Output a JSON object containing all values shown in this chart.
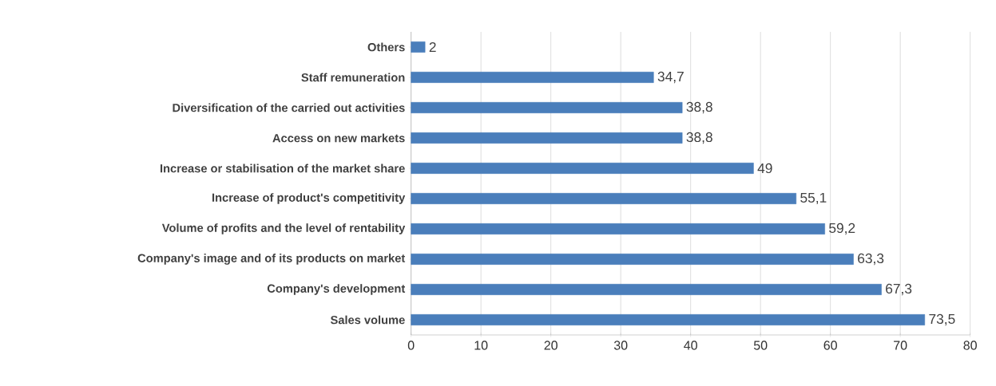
{
  "chart_data": {
    "type": "bar",
    "orientation": "horizontal",
    "categories": [
      "Others",
      "Staff remuneration",
      "Diversification of the carried out activities",
      "Access on new markets",
      "Increase or stabilisation  of the market share",
      "Increase of product's competitivity",
      "Volume of profits and the level of rentability",
      "Company's image and of its products on market",
      "Company's development",
      "Sales volume"
    ],
    "values": [
      2,
      34.7,
      38.8,
      38.8,
      49,
      55.1,
      59.2,
      63.3,
      67.3,
      73.5
    ],
    "value_labels": [
      "2",
      "34,7",
      "38,8",
      "38,8",
      "49",
      "55,1",
      "59,2",
      "63,3",
      "67,3",
      "73,5"
    ],
    "color": "#4a7ebb",
    "xlim": [
      0,
      80
    ],
    "xticks": [
      0,
      10,
      20,
      30,
      40,
      50,
      60,
      70,
      80
    ],
    "grid": "x"
  }
}
